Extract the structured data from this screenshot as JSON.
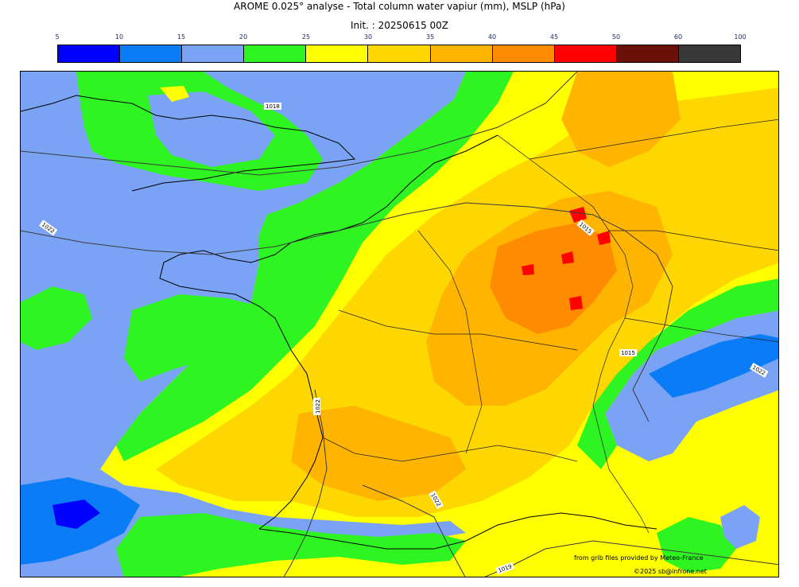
{
  "header": {
    "title": "AROME 0.025° analyse - Total column water vapiur (mm), MSLP (hPa)",
    "init": "Init. : 20250615 00Z"
  },
  "colorbar": {
    "ticks": [
      "5",
      "10",
      "15",
      "20",
      "25",
      "30",
      "35",
      "40",
      "45",
      "50",
      "60",
      "100"
    ],
    "colors": [
      "#0000ff",
      "#0a7cf5",
      "#7aa3f5",
      "#2ef521",
      "#ffff00",
      "#ffd700",
      "#ffb400",
      "#ff8c00",
      "#ff0000",
      "#6b1109",
      "#383838"
    ]
  },
  "isobars": {
    "labels": [
      "1018",
      "1022",
      "1015",
      "1015",
      "1022",
      "1022",
      "1022",
      "1019"
    ]
  },
  "credits": {
    "line1": "from grib files provided by Meteo-France",
    "line2": "©2025 sb@infrone.net"
  }
}
